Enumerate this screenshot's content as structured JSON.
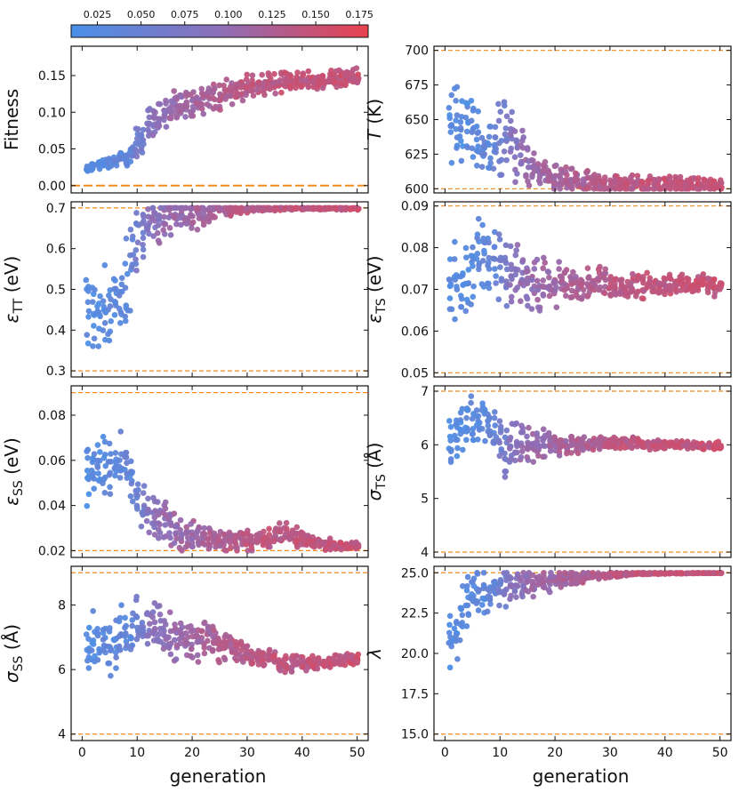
{
  "chart_data": {
    "type": "scatter",
    "colorbar": {
      "min": 0.01,
      "max": 0.18,
      "ticks": [
        "0.025",
        "0.050",
        "0.075",
        "0.100",
        "0.125",
        "0.150",
        "0.175"
      ],
      "colors": [
        "#4a90e8",
        "#8c6fb8",
        "#e8414e"
      ]
    },
    "xlabel": "generation",
    "xlim": [
      -2,
      52
    ],
    "xticks": [
      "0",
      "10",
      "20",
      "30",
      "40",
      "50"
    ],
    "reference_line_color": "#f28a1c",
    "fitness_mean_by_generation": [
      0.02,
      0.023,
      0.026,
      0.028,
      0.03,
      0.032,
      0.034,
      0.036,
      0.038,
      0.04,
      0.06,
      0.065,
      0.085,
      0.09,
      0.095,
      0.1,
      0.103,
      0.106,
      0.108,
      0.11,
      0.113,
      0.116,
      0.118,
      0.12,
      0.122,
      0.124,
      0.126,
      0.128,
      0.13,
      0.132,
      0.134,
      0.136,
      0.137,
      0.138,
      0.139,
      0.14,
      0.14,
      0.141,
      0.141,
      0.142,
      0.142,
      0.143,
      0.143,
      0.144,
      0.144,
      0.145,
      0.145,
      0.146,
      0.146,
      0.147,
      0.147
    ],
    "panels": [
      {
        "id": "fitness",
        "ylabel": "Fitness",
        "ymin": -0.01,
        "ymax": 0.19,
        "ticks": [
          "0.00",
          "0.05",
          "0.10",
          "0.15"
        ],
        "ref_lines": [
          0.0
        ],
        "ref_style": "long-dash",
        "means": [
          0.02,
          0.023,
          0.026,
          0.028,
          0.03,
          0.032,
          0.034,
          0.036,
          0.038,
          0.04,
          0.06,
          0.065,
          0.085,
          0.09,
          0.095,
          0.1,
          0.103,
          0.106,
          0.108,
          0.11,
          0.113,
          0.116,
          0.118,
          0.12,
          0.122,
          0.124,
          0.126,
          0.128,
          0.13,
          0.132,
          0.134,
          0.136,
          0.137,
          0.138,
          0.139,
          0.14,
          0.14,
          0.141,
          0.141,
          0.142,
          0.142,
          0.143,
          0.143,
          0.144,
          0.144,
          0.145,
          0.145,
          0.146,
          0.146,
          0.147,
          0.147
        ],
        "spreads": [
          0.006,
          0.006,
          0.008,
          0.008,
          0.01,
          0.01,
          0.012,
          0.012,
          0.014,
          0.016,
          0.028,
          0.028,
          0.028,
          0.026,
          0.026,
          0.025,
          0.024,
          0.024,
          0.024,
          0.024,
          0.024,
          0.024,
          0.022,
          0.022,
          0.022,
          0.022,
          0.02,
          0.02,
          0.02,
          0.02,
          0.019,
          0.019,
          0.018,
          0.018,
          0.018,
          0.018,
          0.017,
          0.017,
          0.017,
          0.017,
          0.016,
          0.016,
          0.016,
          0.016,
          0.016,
          0.015,
          0.015,
          0.015,
          0.015,
          0.015,
          0.015
        ]
      },
      {
        "id": "temperature",
        "ylabel": "T",
        "ylabel_unit": " (K)",
        "ymin": 597,
        "ymax": 703,
        "ticks": [
          "600",
          "625",
          "650",
          "675",
          "700"
        ],
        "ref_lines": [
          600,
          700
        ],
        "ref_style": "dash",
        "means": [
          650,
          650,
          648,
          645,
          645,
          640,
          635,
          630,
          628,
          625,
          640,
          640,
          635,
          628,
          622,
          618,
          615,
          612,
          610,
          608,
          607,
          606,
          606,
          605,
          605,
          604,
          604,
          604,
          603,
          603,
          603,
          603,
          603,
          603,
          603,
          603,
          603,
          603,
          603,
          603,
          603,
          603,
          603,
          603,
          603,
          603,
          603,
          603,
          603,
          603,
          603
        ],
        "spreads": [
          35,
          35,
          35,
          32,
          32,
          30,
          30,
          28,
          28,
          26,
          32,
          30,
          28,
          25,
          22,
          20,
          18,
          16,
          15,
          14,
          13,
          12,
          12,
          11,
          11,
          10,
          10,
          10,
          9,
          9,
          9,
          9,
          8,
          8,
          8,
          8,
          8,
          8,
          8,
          8,
          7,
          7,
          7,
          7,
          7,
          7,
          7,
          6,
          6,
          6,
          6
        ]
      },
      {
        "id": "eps_tt",
        "ylabel": "ε",
        "ylabel_sub": "TT",
        "ylabel_unit": " (eV)",
        "ymin": 0.285,
        "ymax": 0.715,
        "ticks": [
          "0.3",
          "0.4",
          "0.5",
          "0.6",
          "0.7"
        ],
        "ref_lines": [
          0.3,
          0.7
        ],
        "ref_style": "dash",
        "means": [
          0.43,
          0.44,
          0.44,
          0.45,
          0.45,
          0.46,
          0.48,
          0.5,
          0.53,
          0.56,
          0.62,
          0.64,
          0.66,
          0.67,
          0.67,
          0.68,
          0.68,
          0.68,
          0.685,
          0.685,
          0.69,
          0.69,
          0.69,
          0.692,
          0.694,
          0.695,
          0.695,
          0.696,
          0.697,
          0.697,
          0.698,
          0.698,
          0.698,
          0.698,
          0.699,
          0.699,
          0.699,
          0.699,
          0.699,
          0.699,
          0.699,
          0.699,
          0.699,
          0.699,
          0.699,
          0.699,
          0.699,
          0.699,
          0.699,
          0.699,
          0.699
        ],
        "spreads": [
          0.12,
          0.12,
          0.12,
          0.12,
          0.12,
          0.12,
          0.12,
          0.12,
          0.12,
          0.12,
          0.09,
          0.09,
          0.07,
          0.07,
          0.07,
          0.06,
          0.06,
          0.06,
          0.055,
          0.05,
          0.05,
          0.045,
          0.04,
          0.035,
          0.03,
          0.025,
          0.02,
          0.018,
          0.015,
          0.012,
          0.01,
          0.008,
          0.008,
          0.007,
          0.006,
          0.006,
          0.005,
          0.005,
          0.005,
          0.004,
          0.004,
          0.004,
          0.004,
          0.004,
          0.004,
          0.004,
          0.004,
          0.004,
          0.004,
          0.004,
          0.004
        ]
      },
      {
        "id": "eps_ts",
        "ylabel": "ε",
        "ylabel_sub": "TS",
        "ylabel_unit": " (eV)",
        "ymin": 0.049,
        "ymax": 0.091,
        "ticks": [
          "0.05",
          "0.06",
          "0.07",
          "0.08",
          "0.09"
        ],
        "ref_lines": [
          0.05,
          0.09
        ],
        "ref_style": "dash",
        "means": [
          0.07,
          0.071,
          0.072,
          0.073,
          0.074,
          0.076,
          0.078,
          0.078,
          0.077,
          0.076,
          0.075,
          0.074,
          0.073,
          0.073,
          0.072,
          0.072,
          0.072,
          0.071,
          0.071,
          0.071,
          0.071,
          0.071,
          0.071,
          0.071,
          0.071,
          0.071,
          0.071,
          0.071,
          0.071,
          0.0712,
          0.0712,
          0.0712,
          0.0712,
          0.0712,
          0.0712,
          0.0712,
          0.0712,
          0.0712,
          0.0712,
          0.0712,
          0.0712,
          0.0712,
          0.0712,
          0.0712,
          0.0712,
          0.0712,
          0.0712,
          0.0712,
          0.0712,
          0.0712,
          0.0712
        ],
        "spreads": [
          0.012,
          0.012,
          0.012,
          0.012,
          0.011,
          0.011,
          0.011,
          0.01,
          0.01,
          0.01,
          0.009,
          0.009,
          0.009,
          0.008,
          0.008,
          0.008,
          0.008,
          0.008,
          0.008,
          0.007,
          0.007,
          0.007,
          0.006,
          0.006,
          0.006,
          0.006,
          0.005,
          0.005,
          0.005,
          0.005,
          0.005,
          0.004,
          0.004,
          0.004,
          0.004,
          0.004,
          0.004,
          0.003,
          0.003,
          0.003,
          0.003,
          0.003,
          0.003,
          0.003,
          0.003,
          0.003,
          0.003,
          0.003,
          0.003,
          0.003,
          0.003
        ]
      },
      {
        "id": "eps_ss",
        "ylabel": "ε",
        "ylabel_sub": "SS",
        "ylabel_unit": " (eV)",
        "ymin": 0.017,
        "ymax": 0.093,
        "ticks": [
          "0.02",
          "0.04",
          "0.06",
          "0.08"
        ],
        "ref_lines": [
          0.02,
          0.09
        ],
        "ref_style": "dash",
        "means": [
          0.052,
          0.054,
          0.055,
          0.056,
          0.057,
          0.058,
          0.058,
          0.057,
          0.055,
          0.052,
          0.04,
          0.038,
          0.036,
          0.034,
          0.033,
          0.032,
          0.031,
          0.03,
          0.029,
          0.028,
          0.027,
          0.026,
          0.026,
          0.025,
          0.025,
          0.024,
          0.024,
          0.024,
          0.024,
          0.024,
          0.024,
          0.024,
          0.025,
          0.025,
          0.026,
          0.027,
          0.028,
          0.028,
          0.027,
          0.026,
          0.025,
          0.025,
          0.024,
          0.024,
          0.023,
          0.023,
          0.022,
          0.022,
          0.022,
          0.022,
          0.022
        ],
        "spreads": [
          0.018,
          0.018,
          0.018,
          0.018,
          0.018,
          0.017,
          0.016,
          0.016,
          0.015,
          0.015,
          0.013,
          0.013,
          0.012,
          0.012,
          0.011,
          0.011,
          0.01,
          0.01,
          0.01,
          0.009,
          0.008,
          0.008,
          0.007,
          0.007,
          0.006,
          0.006,
          0.005,
          0.005,
          0.005,
          0.005,
          0.005,
          0.005,
          0.005,
          0.005,
          0.005,
          0.005,
          0.006,
          0.006,
          0.005,
          0.005,
          0.004,
          0.004,
          0.003,
          0.003,
          0.003,
          0.003,
          0.002,
          0.002,
          0.002,
          0.002,
          0.002
        ]
      },
      {
        "id": "sigma_ts",
        "ylabel": "σ",
        "ylabel_sub": "TS",
        "ylabel_unit": " (Å)",
        "ymin": 3.9,
        "ymax": 7.1,
        "ticks": [
          "4",
          "5",
          "6",
          "7"
        ],
        "ref_lines": [
          4,
          7
        ],
        "ref_style": "dash",
        "means": [
          6.0,
          6.1,
          6.2,
          6.3,
          6.4,
          6.5,
          6.5,
          6.4,
          6.3,
          6.2,
          6.1,
          5.9,
          6.0,
          6.0,
          6.0,
          6.0,
          6.0,
          6.0,
          6.0,
          6.0,
          6.0,
          6.0,
          6.0,
          6.0,
          6.0,
          6.0,
          6.0,
          6.05,
          6.05,
          6.05,
          6.05,
          6.05,
          6.05,
          6.05,
          6.05,
          6.05,
          6.0,
          6.0,
          6.0,
          6.0,
          6.0,
          6.0,
          6.0,
          6.0,
          6.0,
          6.0,
          5.98,
          5.98,
          5.98,
          5.98,
          5.98
        ],
        "spreads": [
          0.55,
          0.55,
          0.55,
          0.55,
          0.5,
          0.5,
          0.5,
          0.5,
          0.5,
          0.5,
          0.6,
          0.7,
          0.5,
          0.45,
          0.45,
          0.42,
          0.4,
          0.38,
          0.36,
          0.34,
          0.32,
          0.3,
          0.28,
          0.26,
          0.24,
          0.22,
          0.2,
          0.18,
          0.17,
          0.16,
          0.15,
          0.14,
          0.13,
          0.12,
          0.12,
          0.11,
          0.1,
          0.1,
          0.1,
          0.1,
          0.09,
          0.09,
          0.09,
          0.08,
          0.08,
          0.08,
          0.08,
          0.08,
          0.08,
          0.08,
          0.08
        ]
      },
      {
        "id": "sigma_ss",
        "ylabel": "σ",
        "ylabel_sub": "SS",
        "ylabel_unit": " (Å)",
        "ymin": 3.8,
        "ymax": 9.2,
        "ticks": [
          "4",
          "6",
          "8"
        ],
        "ref_lines": [
          4,
          9
        ],
        "ref_style": "dash",
        "means": [
          6.8,
          6.8,
          6.8,
          6.8,
          6.8,
          6.9,
          6.9,
          7.0,
          7.0,
          7.2,
          7.4,
          7.5,
          7.4,
          7.3,
          7.2,
          7.1,
          7.0,
          6.9,
          6.9,
          6.9,
          6.9,
          6.9,
          6.9,
          6.9,
          6.9,
          6.8,
          6.8,
          6.7,
          6.6,
          6.5,
          6.5,
          6.4,
          6.4,
          6.3,
          6.3,
          6.3,
          6.2,
          6.2,
          6.2,
          6.2,
          6.2,
          6.2,
          6.2,
          6.2,
          6.2,
          6.3,
          6.3,
          6.3,
          6.3,
          6.3,
          6.3
        ],
        "spreads": [
          1.0,
          1.0,
          1.1,
          1.1,
          1.2,
          1.2,
          1.2,
          1.1,
          1.1,
          1.1,
          1.1,
          1.1,
          1.0,
          1.0,
          1.0,
          0.9,
          0.9,
          0.9,
          0.9,
          0.9,
          0.85,
          0.8,
          0.8,
          0.75,
          0.7,
          0.65,
          0.6,
          0.55,
          0.5,
          0.45,
          0.42,
          0.4,
          0.38,
          0.36,
          0.34,
          0.32,
          0.3,
          0.3,
          0.3,
          0.28,
          0.28,
          0.26,
          0.26,
          0.25,
          0.25,
          0.25,
          0.24,
          0.24,
          0.24,
          0.24,
          0.24
        ]
      },
      {
        "id": "lambda",
        "ylabel": "λ",
        "ymin": 14.6,
        "ymax": 25.4,
        "ticks": [
          "15.0",
          "17.5",
          "20.0",
          "22.5",
          "25.0"
        ],
        "ref_lines": [
          15.0,
          25.0
        ],
        "ref_style": "dash",
        "means": [
          20.0,
          20.5,
          21.5,
          22.5,
          23.0,
          23.5,
          23.7,
          23.8,
          23.9,
          24.0,
          24.0,
          24.1,
          24.2,
          24.3,
          24.3,
          24.4,
          24.4,
          24.5,
          24.5,
          24.5,
          24.6,
          24.6,
          24.6,
          24.7,
          24.7,
          24.7,
          24.8,
          24.8,
          24.8,
          24.85,
          24.9,
          24.9,
          24.9,
          24.9,
          24.95,
          24.95,
          24.95,
          24.95,
          24.95,
          24.95,
          24.95,
          24.97,
          24.97,
          24.97,
          24.97,
          24.98,
          24.98,
          24.98,
          24.98,
          24.98,
          24.98
        ],
        "spreads": [
          2.5,
          2.5,
          2.4,
          2.2,
          2.0,
          1.8,
          1.7,
          1.6,
          1.5,
          1.4,
          1.4,
          1.3,
          1.2,
          1.1,
          1.0,
          0.9,
          0.9,
          0.85,
          0.8,
          0.75,
          0.7,
          0.65,
          0.6,
          0.55,
          0.5,
          0.45,
          0.4,
          0.35,
          0.3,
          0.25,
          0.2,
          0.18,
          0.15,
          0.12,
          0.1,
          0.08,
          0.07,
          0.06,
          0.05,
          0.05,
          0.04,
          0.04,
          0.03,
          0.03,
          0.03,
          0.03,
          0.02,
          0.02,
          0.02,
          0.02,
          0.02
        ]
      }
    ]
  }
}
